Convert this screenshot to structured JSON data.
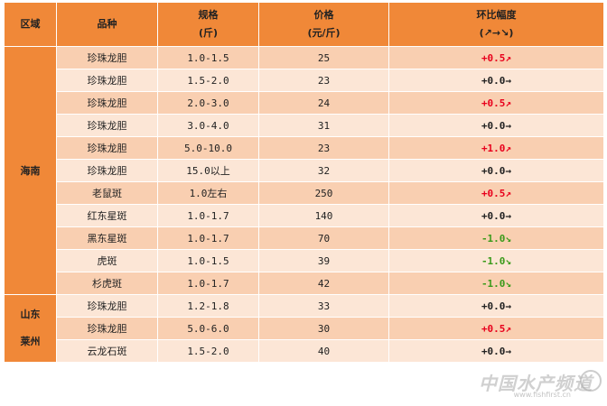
{
  "header": {
    "region": "区域",
    "variety": "品种",
    "spec": "规格",
    "spec_unit": "(斤)",
    "price": "价格",
    "price_unit": "(元/斤)",
    "change": "环比幅度",
    "change_unit": "(↗→↘)"
  },
  "regions": {
    "hainan": "海南",
    "shandong_1": "山东",
    "shandong_2": "莱州"
  },
  "rows": [
    {
      "variety": "珍珠龙胆",
      "spec": "1.0-1.5",
      "price": "25",
      "change": "+0.5↗"
    },
    {
      "variety": "珍珠龙胆",
      "spec": "1.5-2.0",
      "price": "23",
      "change": "+0.0→"
    },
    {
      "variety": "珍珠龙胆",
      "spec": "2.0-3.0",
      "price": "24",
      "change": "+0.5↗"
    },
    {
      "variety": "珍珠龙胆",
      "spec": "3.0-4.0",
      "price": "31",
      "change": "+0.0→"
    },
    {
      "variety": "珍珠龙胆",
      "spec": "5.0-10.0",
      "price": "23",
      "change": "+1.0↗"
    },
    {
      "variety": "珍珠龙胆",
      "spec": "15.0以上",
      "price": "32",
      "change": "+0.0→"
    },
    {
      "variety": "老鼠斑",
      "spec": "1.0左右",
      "price": "250",
      "change": "+0.5↗"
    },
    {
      "variety": "红东星斑",
      "spec": "1.0-1.7",
      "price": "140",
      "change": "+0.0→"
    },
    {
      "variety": "黑东星斑",
      "spec": "1.0-1.7",
      "price": "70",
      "change": "-1.0↘"
    },
    {
      "variety": "虎斑",
      "spec": "1.0-1.5",
      "price": "39",
      "change": "-1.0↘"
    },
    {
      "variety": "杉虎斑",
      "spec": "1.0-1.7",
      "price": "42",
      "change": "-1.0↘"
    },
    {
      "variety": "珍珠龙胆",
      "spec": "1.2-1.8",
      "price": "33",
      "change": "+0.0→"
    },
    {
      "variety": "珍珠龙胆",
      "spec": "5.0-6.0",
      "price": "30",
      "change": "+0.5↗"
    },
    {
      "variety": "云龙石斑",
      "spec": "1.5-2.0",
      "price": "40",
      "change": "+0.0→"
    }
  ],
  "colors": {
    "header": "#f08838",
    "row_dark": "#f9cfb1",
    "row_light": "#fce6d6",
    "up": "#e8001c",
    "down": "#3a9a1a"
  },
  "watermark": {
    "text": "中国水产频道",
    "sub": "www.fishfirst.cn"
  }
}
